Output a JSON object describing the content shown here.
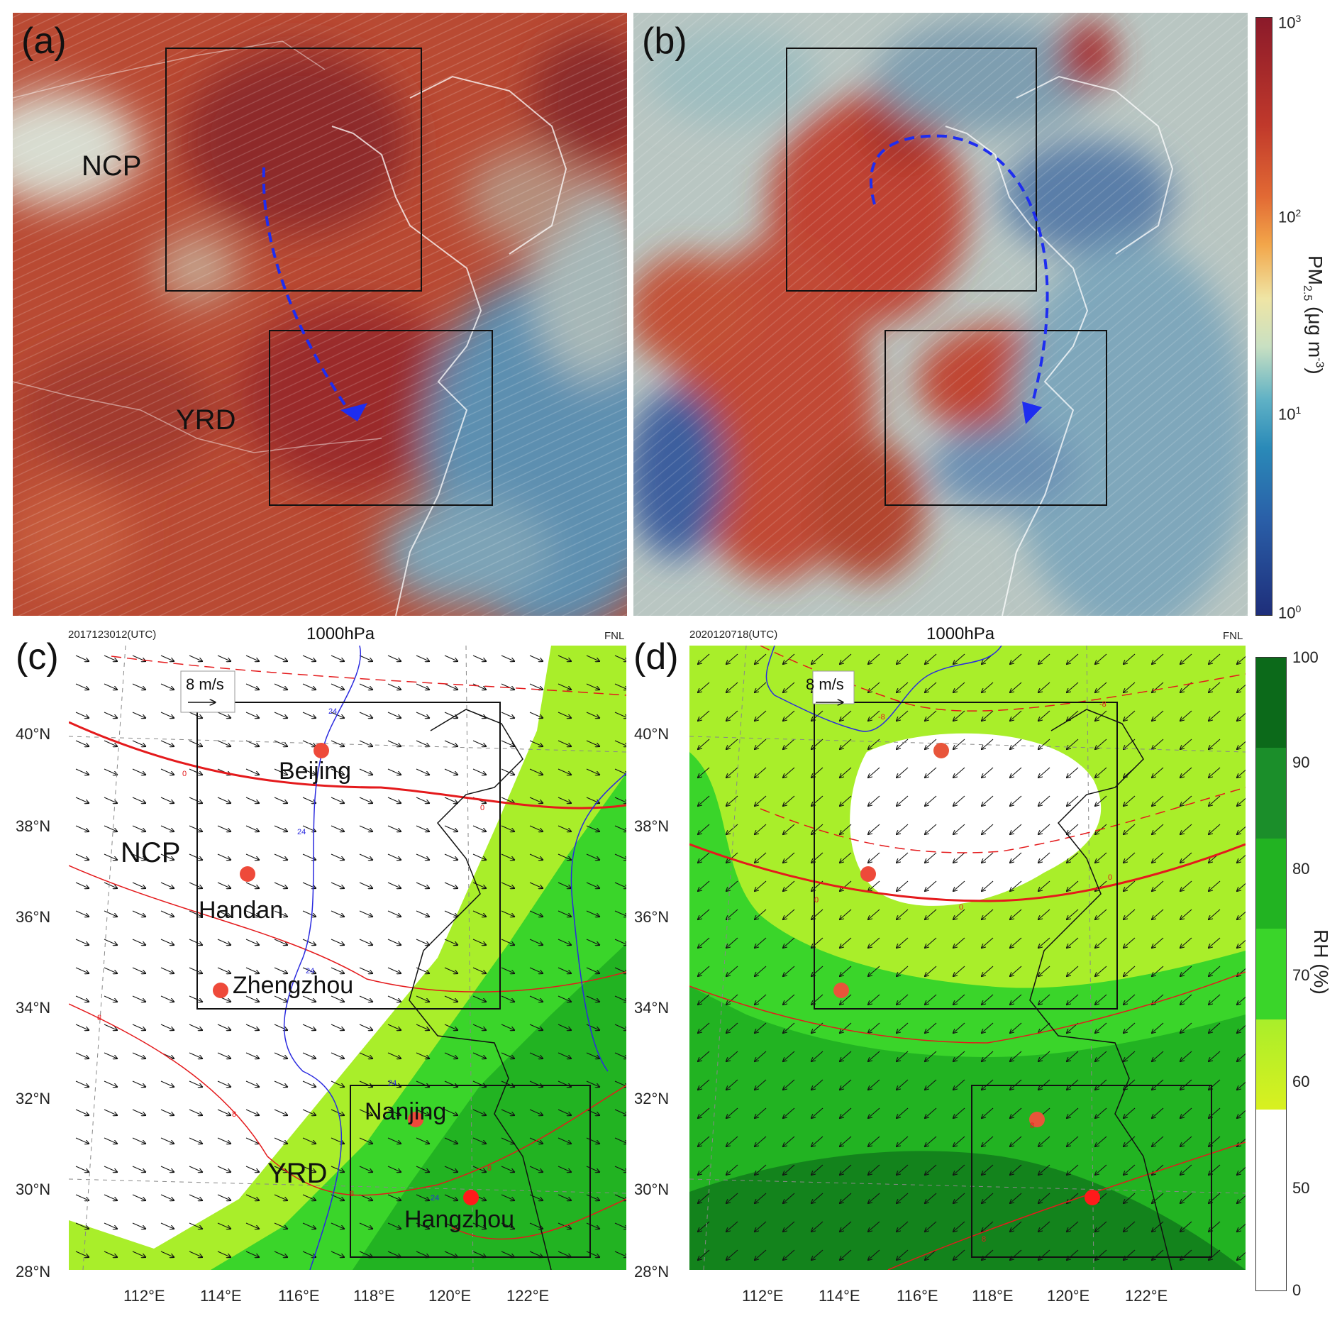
{
  "panels": {
    "a": {
      "label": "(a)",
      "regions": [
        "NCP",
        "YRD"
      ]
    },
    "b": {
      "label": "(b)"
    },
    "c": {
      "label": "(c)",
      "time": "2017123012(UTC)",
      "level": "1000hPa",
      "source": "FNL",
      "ref_vector": "8 m/s",
      "regions": [
        "NCP",
        "YRD"
      ],
      "cities": [
        "Beijing",
        "Handan",
        "Zhengzhou",
        "Nanjing",
        "Hangzhou"
      ],
      "contour_labels": {
        "zero_a": "0",
        "zero_b": "0",
        "eight_a": "8",
        "eight_b": "8",
        "eight_c": "8",
        "eight_d": "8",
        "t24_a": "24",
        "t24_b": "24",
        "t24_c": "24",
        "t24_d": "24",
        "t24_e": "24"
      }
    },
    "d": {
      "label": "(d)",
      "time": "2020120718(UTC)",
      "level": "1000hPa",
      "source": "FNL",
      "ref_vector": "8 m/s",
      "contour_labels": {
        "m8_a": "-8",
        "m8_b": "-8",
        "zero_a": "0",
        "zero_b": "0",
        "zero_c": "0",
        "eight_a": "8",
        "eight_b": "8"
      }
    }
  },
  "axes": {
    "lat_ticks": [
      "40°N",
      "38°N",
      "36°N",
      "34°N",
      "32°N",
      "30°N",
      "28°N"
    ],
    "lon_ticks": [
      "112°E",
      "114°E",
      "116°E",
      "118°E",
      "120°E",
      "122°E"
    ]
  },
  "colorbar_pm": {
    "title": "PM",
    "title_sub": "2.5",
    "title_unit": " (μg m",
    "title_exp": "-3",
    "title_close": ")",
    "ticks": [
      {
        "base": "10",
        "exp": "3"
      },
      {
        "base": "10",
        "exp": "2"
      },
      {
        "base": "10",
        "exp": "1"
      },
      {
        "base": "10",
        "exp": "0"
      }
    ]
  },
  "colorbar_rh": {
    "title": "RH (%)",
    "ticks": [
      "100",
      "90",
      "80",
      "70",
      "60",
      "50",
      "0"
    ],
    "colors": [
      "#0c6a1a",
      "#1b8e2a",
      "#22b322",
      "#3ad52a",
      "#a9ee2a",
      "#d9f020",
      "#ffffff"
    ]
  }
}
